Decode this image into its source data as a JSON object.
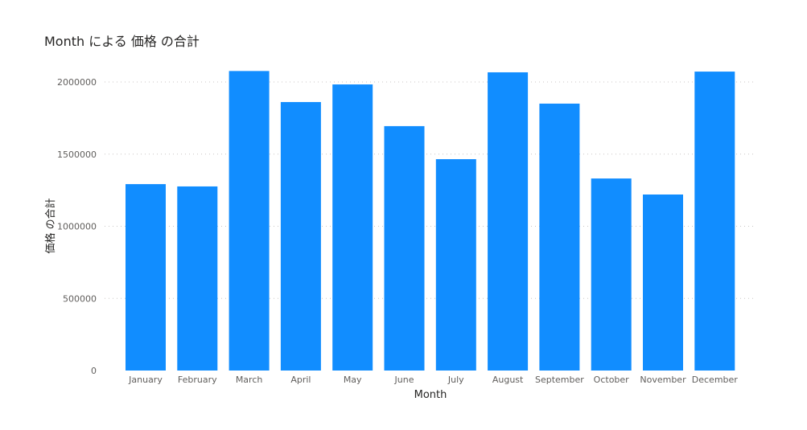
{
  "chart_data": {
    "type": "bar",
    "title": "Month による 価格 の合計",
    "xlabel": "Month",
    "ylabel": "価格 の合計",
    "categories": [
      "January",
      "February",
      "March",
      "April",
      "May",
      "June",
      "July",
      "August",
      "September",
      "October",
      "November",
      "December"
    ],
    "values": [
      1292000,
      1276000,
      2076000,
      1861000,
      1983000,
      1694000,
      1465000,
      2067000,
      1850000,
      1331000,
      1220000,
      2072000
    ],
    "ylim": [
      0,
      2000000
    ],
    "yticks": [
      0,
      500000,
      1000000,
      1500000,
      2000000
    ],
    "grid": true,
    "bar_color": "#118DFF",
    "legend": "none"
  }
}
